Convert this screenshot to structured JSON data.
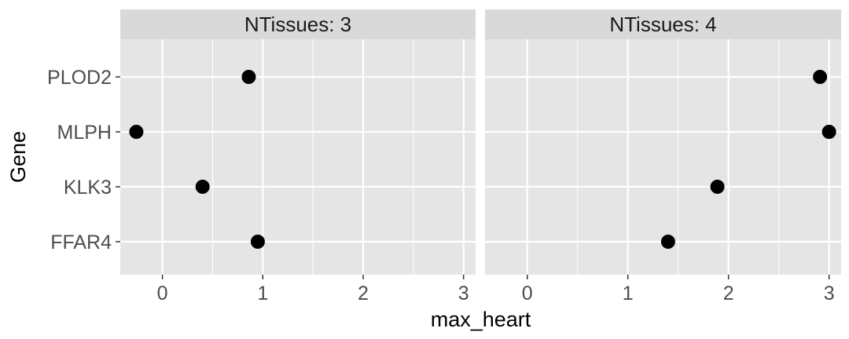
{
  "chart_data": {
    "type": "scatter",
    "xlabel": "max_heart",
    "ylabel": "Gene",
    "categories": [
      "PLOD2",
      "MLPH",
      "KLK3",
      "FFAR4"
    ],
    "xlim": [
      -0.42,
      3.12
    ],
    "xticks": [
      0,
      1,
      2,
      3
    ],
    "grid": true,
    "facets": [
      {
        "label": "NTissues: 3",
        "points": [
          {
            "gene": "PLOD2",
            "x": 0.86
          },
          {
            "gene": "MLPH",
            "x": -0.26
          },
          {
            "gene": "KLK3",
            "x": 0.4
          },
          {
            "gene": "FFAR4",
            "x": 0.95
          }
        ]
      },
      {
        "label": "NTissues: 4",
        "points": [
          {
            "gene": "PLOD2",
            "x": 2.91
          },
          {
            "gene": "MLPH",
            "x": 3.0
          },
          {
            "gene": "KLK3",
            "x": 1.89
          },
          {
            "gene": "FFAR4",
            "x": 1.4
          }
        ]
      }
    ]
  },
  "colors": {
    "panel_bg": "#e5e5e5",
    "strip_bg": "#d9d9d9",
    "grid": "#ffffff",
    "point": "#000000",
    "tick": "#333333"
  }
}
